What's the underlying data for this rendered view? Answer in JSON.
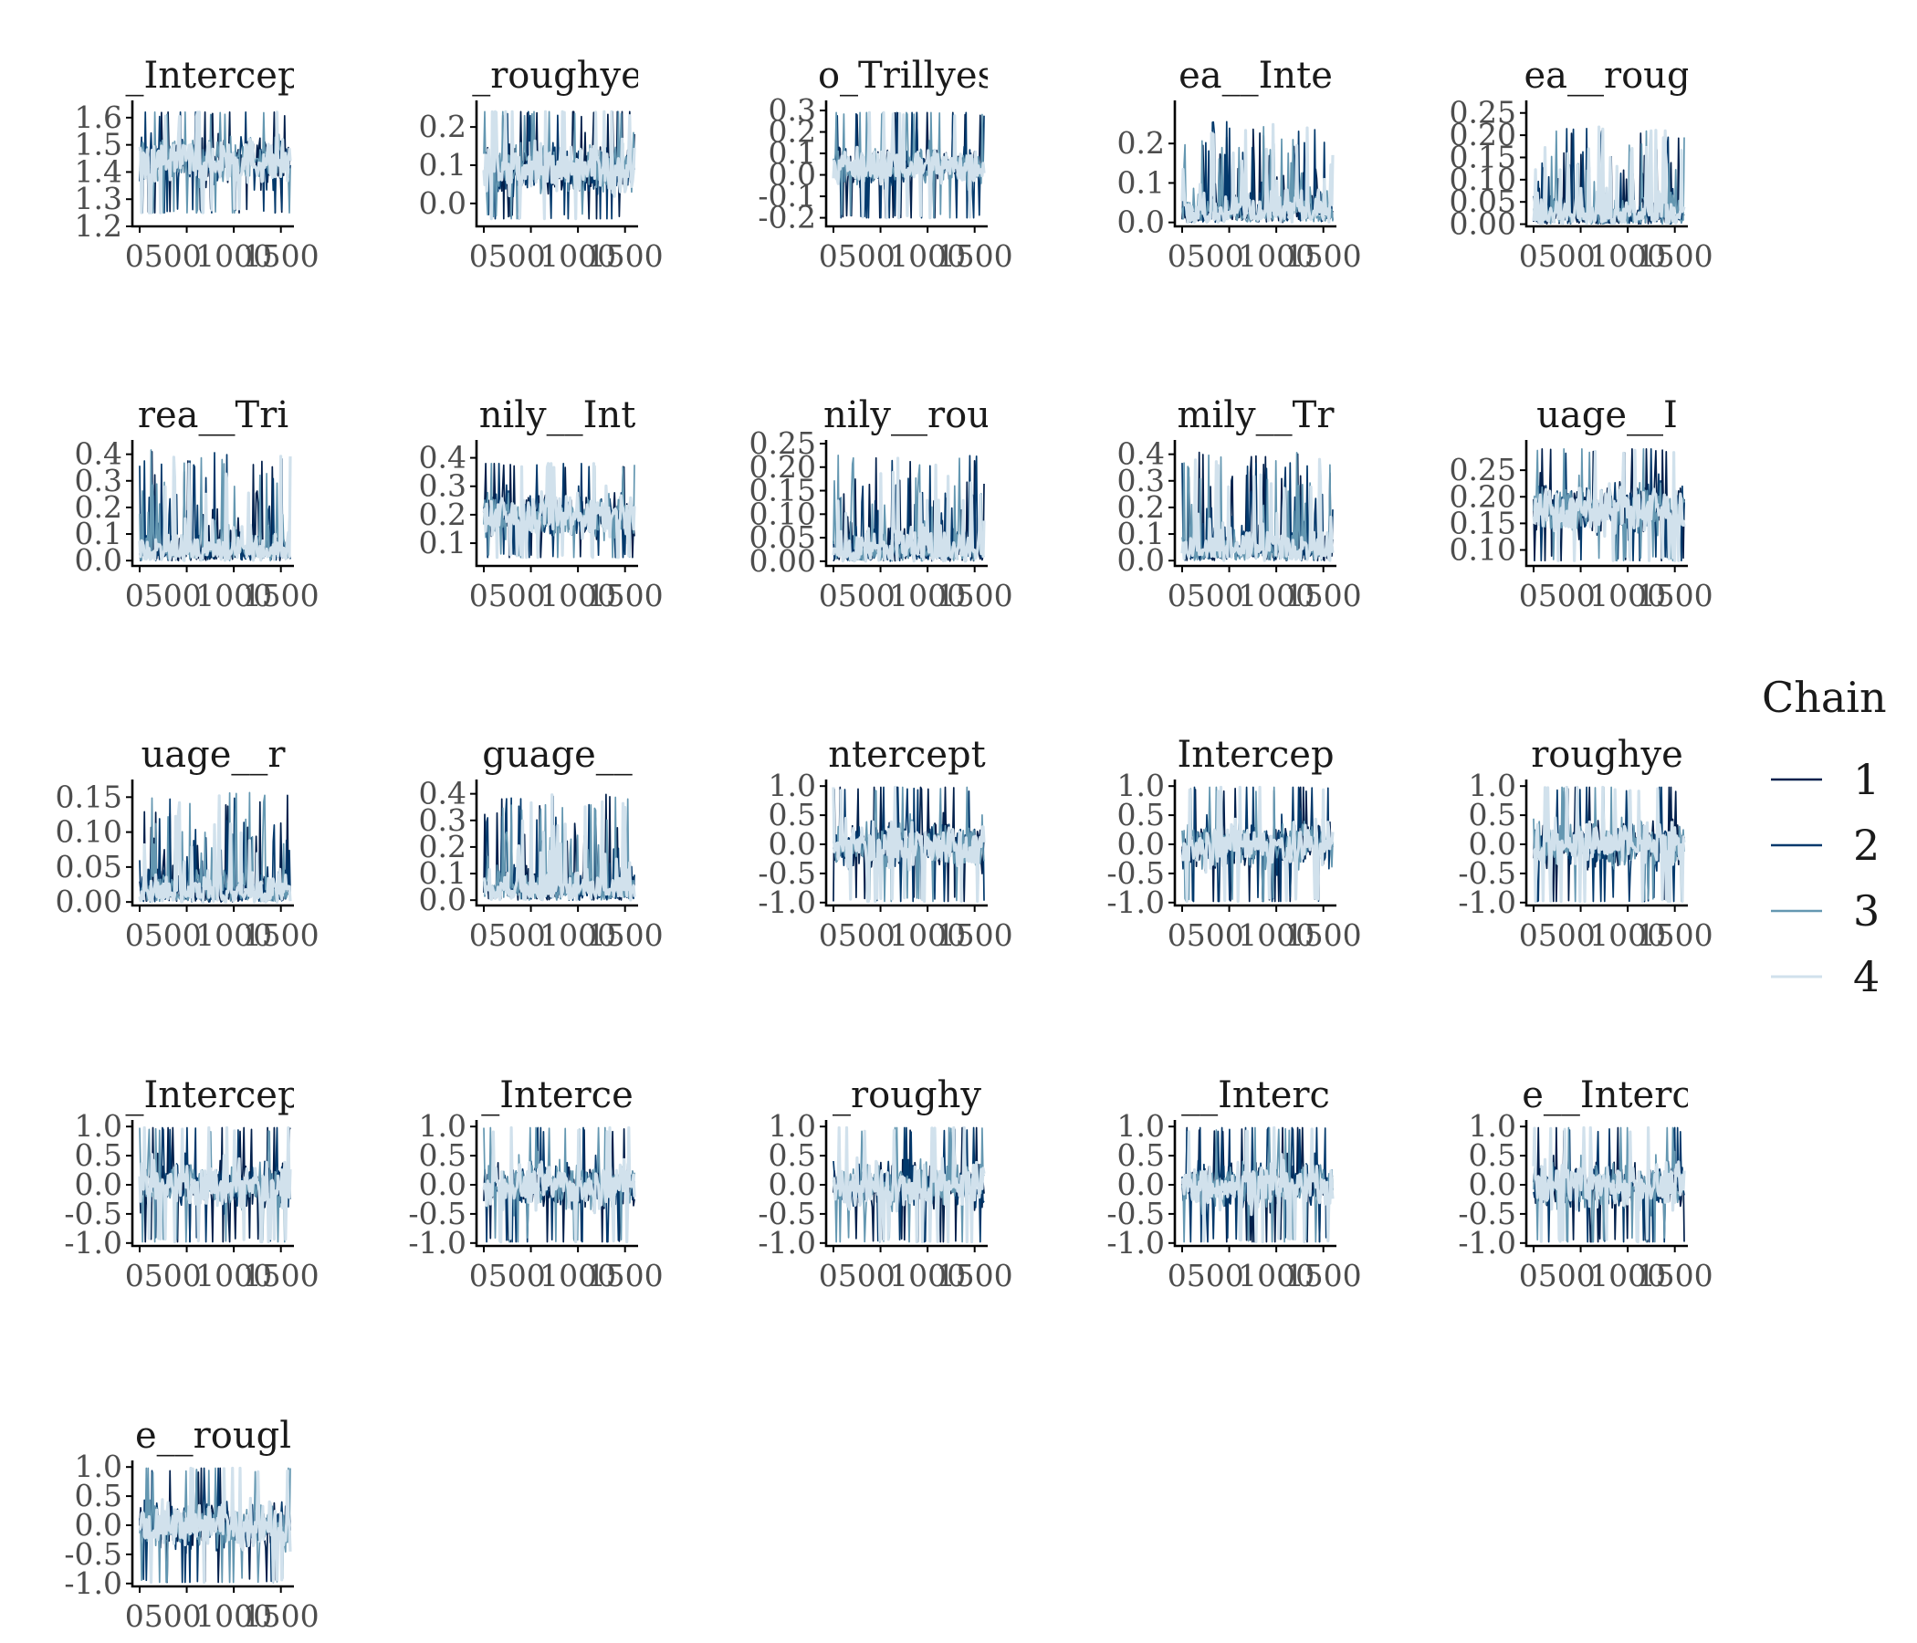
{
  "colors": {
    "chain_1": "#011f4b",
    "chain_2": "#03396c",
    "chain_3": "#6497b1",
    "chain_4": "#d1e1ec",
    "axis": "#000000",
    "tick_text": "#4d4d4d"
  },
  "legend": {
    "title": "Chain",
    "placement": "right",
    "entries": [
      "1",
      "2",
      "3",
      "4"
    ]
  },
  "chart_data": {
    "type": "line",
    "grid": false,
    "facet_columns": 5,
    "x_range": [
      0,
      1600
    ],
    "x_ticks": [
      "0",
      "500",
      "1000",
      "1500"
    ],
    "x_tick_labels_shown": [
      "0500",
      "1000",
      "1500"
    ],
    "series_names": [
      "1",
      "2",
      "3",
      "4"
    ],
    "panels": [
      {
        "title": "_Intercep",
        "ylim": [
          1.2,
          1.65
        ],
        "y_ticks": [
          "1.2",
          "1.3",
          "1.4",
          "1.5",
          "1.6"
        ],
        "center": 1.44,
        "spread": 0.11,
        "lower": 1.25,
        "upper": 1.62
      },
      {
        "title": "_roughye",
        "ylim": [
          -0.06,
          0.26
        ],
        "y_ticks": [
          "0.0",
          "0.1",
          "0.2"
        ],
        "center": 0.09,
        "spread": 0.085,
        "lower": -0.04,
        "upper": 0.24
      },
      {
        "title": "o_Trillyes",
        "ylim": [
          -0.24,
          0.33
        ],
        "y_ticks": [
          "-0.2",
          "-0.1",
          "0.0",
          "0.1",
          "0.2",
          "0.3"
        ],
        "center": 0.04,
        "spread": 0.11,
        "lower": -0.2,
        "upper": 0.29
      },
      {
        "title": "ea__Inte",
        "ylim": [
          -0.01,
          0.3
        ],
        "y_ticks": [
          "0.0",
          "0.1",
          "0.2"
        ],
        "center": 0.06,
        "spread": 0.07,
        "lower": 0.0,
        "upper": 0.26,
        "positive": true
      },
      {
        "title": "ea__roug",
        "ylim": [
          -0.005,
          0.27
        ],
        "y_ticks": [
          "0.00",
          "0.05",
          "0.10",
          "0.15",
          "0.20",
          "0.25"
        ],
        "center": 0.05,
        "spread": 0.055,
        "lower": 0.0,
        "upper": 0.22,
        "positive": true
      },
      {
        "title": "rea__Tri",
        "ylim": [
          -0.02,
          0.44
        ],
        "y_ticks": [
          "0.0",
          "0.1",
          "0.2",
          "0.3",
          "0.4"
        ],
        "center": 0.09,
        "spread": 0.09,
        "lower": 0.0,
        "upper": 0.42,
        "positive": true
      },
      {
        "title": "nily__Int",
        "ylim": [
          0.02,
          0.45
        ],
        "y_ticks": [
          "0.1",
          "0.2",
          "0.3",
          "0.4"
        ],
        "center": 0.2,
        "spread": 0.1,
        "lower": 0.05,
        "upper": 0.38
      },
      {
        "title": "nily__rou",
        "ylim": [
          -0.01,
          0.25
        ],
        "y_ticks": [
          "0.00",
          "0.05",
          "0.10",
          "0.15",
          "0.20",
          "0.25"
        ],
        "center": 0.06,
        "spread": 0.06,
        "lower": 0.0,
        "upper": 0.23,
        "positive": true
      },
      {
        "title": "mily__Tr",
        "ylim": [
          -0.02,
          0.44
        ],
        "y_ticks": [
          "0.0",
          "0.1",
          "0.2",
          "0.3",
          "0.4"
        ],
        "center": 0.12,
        "spread": 0.1,
        "lower": 0.0,
        "upper": 0.41,
        "positive": true
      },
      {
        "title": "uage__I",
        "ylim": [
          0.07,
          0.3
        ],
        "y_ticks": [
          "0.10",
          "0.15",
          "0.20",
          "0.25"
        ],
        "center": 0.18,
        "spread": 0.06,
        "lower": 0.08,
        "upper": 0.29
      },
      {
        "title": "uage__r",
        "ylim": [
          -0.005,
          0.17
        ],
        "y_ticks": [
          "0.00",
          "0.05",
          "0.10",
          "0.15"
        ],
        "center": 0.035,
        "spread": 0.04,
        "lower": 0.0,
        "upper": 0.16,
        "positive": true
      },
      {
        "title": "guage__",
        "ylim": [
          -0.02,
          0.44
        ],
        "y_ticks": [
          "0.0",
          "0.1",
          "0.2",
          "0.3",
          "0.4"
        ],
        "center": 0.12,
        "spread": 0.1,
        "lower": 0.0,
        "upper": 0.4,
        "positive": true
      },
      {
        "title": "ntercept",
        "ylim": [
          -1.05,
          1.05
        ],
        "y_ticks": [
          "-1.0",
          "-0.5",
          "0.0",
          "0.5",
          "1.0"
        ],
        "center": 0.0,
        "spread": 0.5,
        "lower": -0.98,
        "upper": 0.98
      },
      {
        "title": "Intercep",
        "ylim": [
          -1.05,
          1.05
        ],
        "y_ticks": [
          "-1.0",
          "-0.5",
          "0.0",
          "0.5",
          "1.0"
        ],
        "center": 0.0,
        "spread": 0.5,
        "lower": -0.98,
        "upper": 0.98
      },
      {
        "title": "roughye",
        "ylim": [
          -1.05,
          1.05
        ],
        "y_ticks": [
          "-1.0",
          "-0.5",
          "0.0",
          "0.5",
          "1.0"
        ],
        "center": 0.0,
        "spread": 0.5,
        "lower": -0.98,
        "upper": 0.98
      },
      {
        "title": "_Intercep",
        "ylim": [
          -1.05,
          1.05
        ],
        "y_ticks": [
          "-1.0",
          "-0.5",
          "0.0",
          "0.5",
          "1.0"
        ],
        "center": 0.0,
        "spread": 0.5,
        "lower": -0.98,
        "upper": 0.98
      },
      {
        "title": "_Interce",
        "ylim": [
          -1.05,
          1.05
        ],
        "y_ticks": [
          "-1.0",
          "-0.5",
          "0.0",
          "0.5",
          "1.0"
        ],
        "center": 0.0,
        "spread": 0.5,
        "lower": -0.98,
        "upper": 0.98
      },
      {
        "title": "_roughy",
        "ylim": [
          -1.05,
          1.05
        ],
        "y_ticks": [
          "-1.0",
          "-0.5",
          "0.0",
          "0.5",
          "1.0"
        ],
        "center": 0.0,
        "spread": 0.5,
        "lower": -0.98,
        "upper": 0.98
      },
      {
        "title": "__Interc",
        "ylim": [
          -1.05,
          1.05
        ],
        "y_ticks": [
          "-1.0",
          "-0.5",
          "0.0",
          "0.5",
          "1.0"
        ],
        "center": 0.0,
        "spread": 0.5,
        "lower": -0.98,
        "upper": 0.98
      },
      {
        "title": "e__Interc",
        "ylim": [
          -1.05,
          1.05
        ],
        "y_ticks": [
          "-1.0",
          "-0.5",
          "0.0",
          "0.5",
          "1.0"
        ],
        "center": 0.0,
        "spread": 0.5,
        "lower": -0.98,
        "upper": 0.98
      },
      {
        "title": "e__rougl",
        "ylim": [
          -1.05,
          1.05
        ],
        "y_ticks": [
          "-1.0",
          "-0.5",
          "0.0",
          "0.5",
          "1.0"
        ],
        "center": 0.0,
        "spread": 0.5,
        "lower": -0.98,
        "upper": 0.98
      }
    ]
  }
}
